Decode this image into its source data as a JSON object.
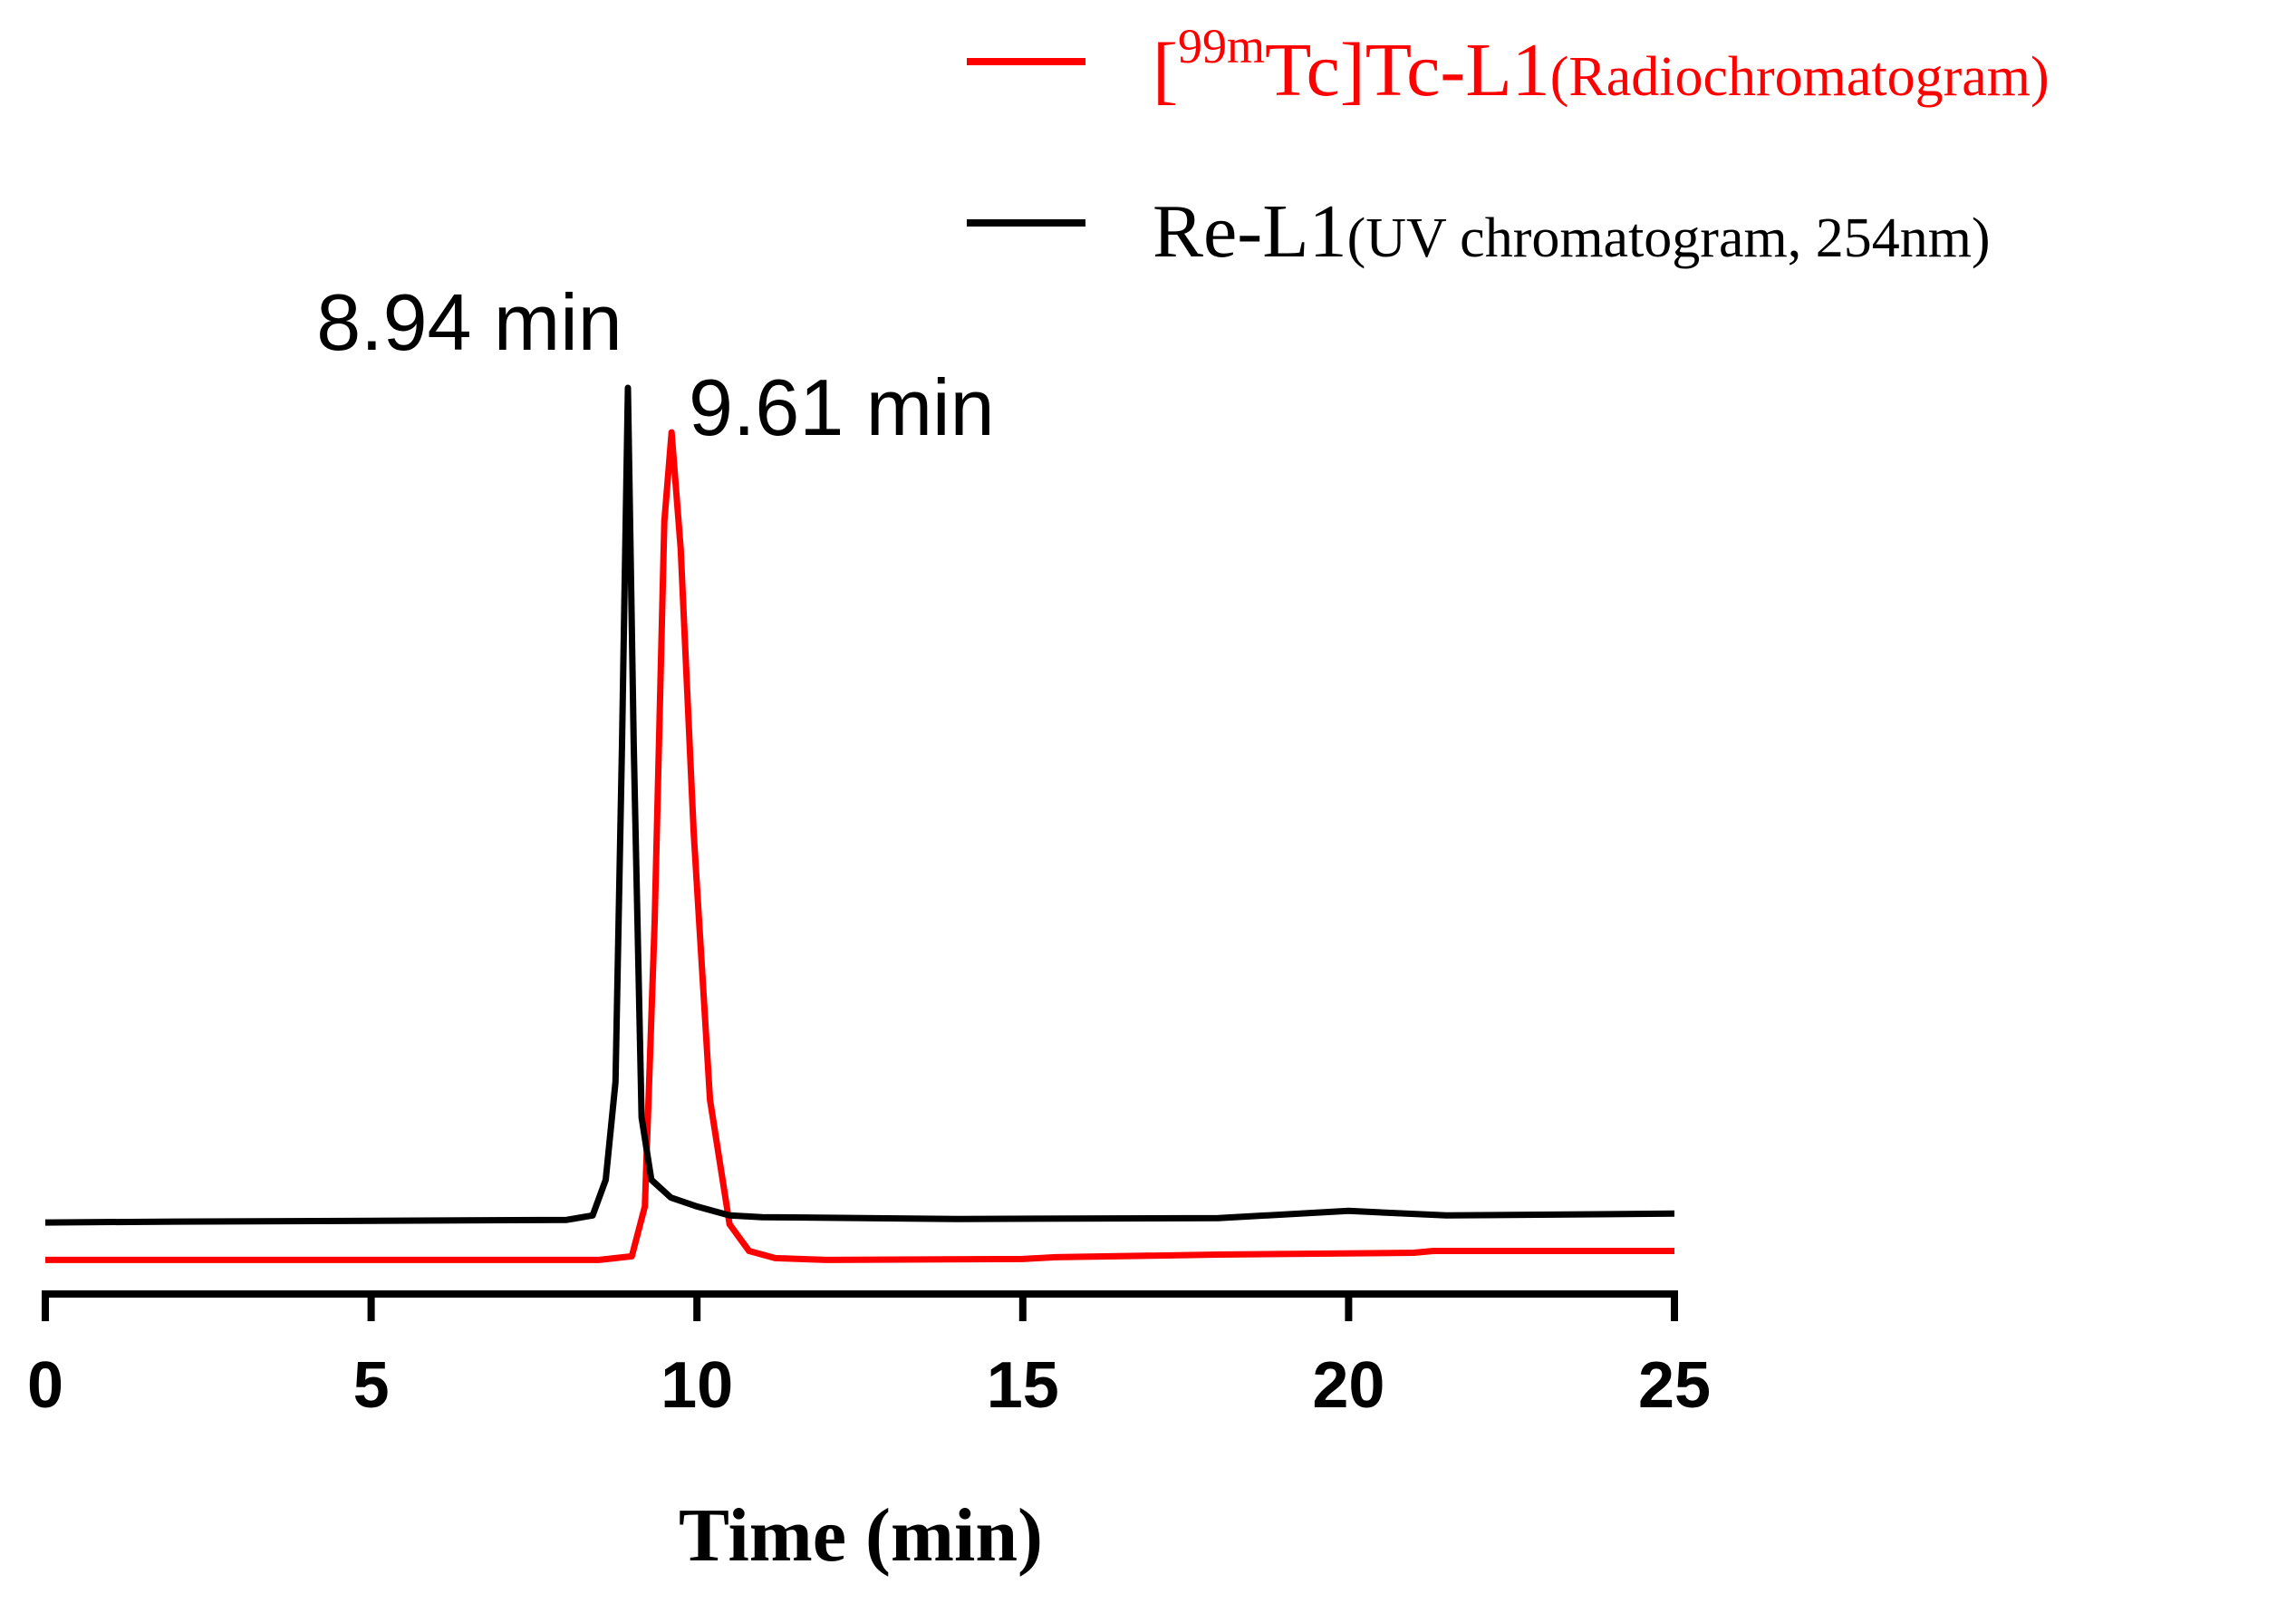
{
  "chart_data": {
    "type": "line",
    "xlabel": "Time (min)",
    "ylabel": "",
    "xlim": [
      0,
      25
    ],
    "ylim": [
      0,
      100
    ],
    "x_ticks": [
      "0",
      "5",
      "10",
      "15",
      "20",
      "25"
    ],
    "grid": false,
    "legend_position": "top-right",
    "series": [
      {
        "name": "Radiochromatogram",
        "legend_prefix": "[",
        "legend_sup": "99m",
        "legend_main": "Tc]Tc-L1",
        "legend_sub": "(Radiochromatogram)",
        "color": "#ff0000",
        "points": [
          [
            0,
            2.0
          ],
          [
            5,
            2.0
          ],
          [
            8.5,
            2.0
          ],
          [
            9.0,
            2.4
          ],
          [
            9.2,
            8
          ],
          [
            9.35,
            40
          ],
          [
            9.5,
            85
          ],
          [
            9.61,
            95
          ],
          [
            9.75,
            82
          ],
          [
            9.95,
            50
          ],
          [
            10.2,
            20
          ],
          [
            10.5,
            6
          ],
          [
            10.8,
            3
          ],
          [
            11.2,
            2.2
          ],
          [
            12,
            2.0
          ],
          [
            15,
            2.1
          ],
          [
            15.5,
            2.3
          ],
          [
            18,
            2.6
          ],
          [
            21,
            2.8
          ],
          [
            21.3,
            3.0
          ],
          [
            25,
            3.0
          ]
        ]
      },
      {
        "name": "UV chromatogram",
        "legend_main": "Re-L1",
        "legend_sub": "(UV chromatogram, 254nm)",
        "color": "#000000",
        "points": [
          [
            0,
            6.2
          ],
          [
            2,
            6.3
          ],
          [
            5,
            6.4
          ],
          [
            8,
            6.5
          ],
          [
            8.4,
            7
          ],
          [
            8.6,
            11
          ],
          [
            8.75,
            22
          ],
          [
            8.85,
            60
          ],
          [
            8.94,
            100
          ],
          [
            9.03,
            60
          ],
          [
            9.15,
            18
          ],
          [
            9.3,
            11
          ],
          [
            9.6,
            9
          ],
          [
            10,
            8
          ],
          [
            10.5,
            7
          ],
          [
            11,
            6.8
          ],
          [
            14,
            6.6
          ],
          [
            18,
            6.7
          ],
          [
            20,
            7.5
          ],
          [
            21.5,
            7.0
          ],
          [
            25,
            7.2
          ]
        ]
      }
    ],
    "annotations": [
      {
        "text": "8.94 min",
        "x": 8.94,
        "y": 100,
        "series": "UV chromatogram"
      },
      {
        "text": "9.61 min",
        "x": 9.61,
        "y": 95,
        "series": "Radiochromatogram"
      }
    ]
  }
}
